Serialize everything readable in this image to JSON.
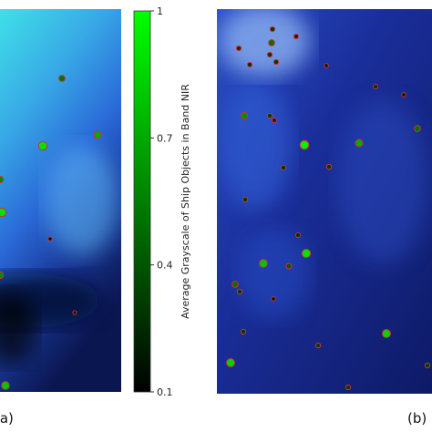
{
  "chart_data": {
    "type": "image-scatter",
    "colorbar": {
      "label": "Average Grayscale of Ship Objects in Band NIR",
      "lim": [
        0.1,
        1
      ],
      "ticks": [
        1,
        0.7,
        0.4,
        0.1
      ],
      "color_low": "#000000",
      "color_high": "#00ff00"
    },
    "marker_edge": "#d03030",
    "panels": [
      {
        "label": "(a)",
        "values": [
          0.5,
          0.9,
          0.7,
          0.6,
          0.9,
          0.15,
          0.6,
          0.15,
          0.8
        ]
      },
      {
        "label": "(b)",
        "values": [
          0.3,
          0.25,
          0.5,
          0.3,
          0.3,
          0.3,
          0.25,
          0.2,
          0.6,
          0.3,
          0.25,
          0.2,
          0.95,
          0.7,
          0.5,
          0.3,
          0.25,
          0.3,
          0.9,
          0.8,
          0.4,
          0.25,
          0.5,
          0.3,
          0.2,
          0.3,
          0.85,
          0.85,
          0.3,
          0.3,
          0.3,
          0.25
        ]
      }
    ]
  }
}
